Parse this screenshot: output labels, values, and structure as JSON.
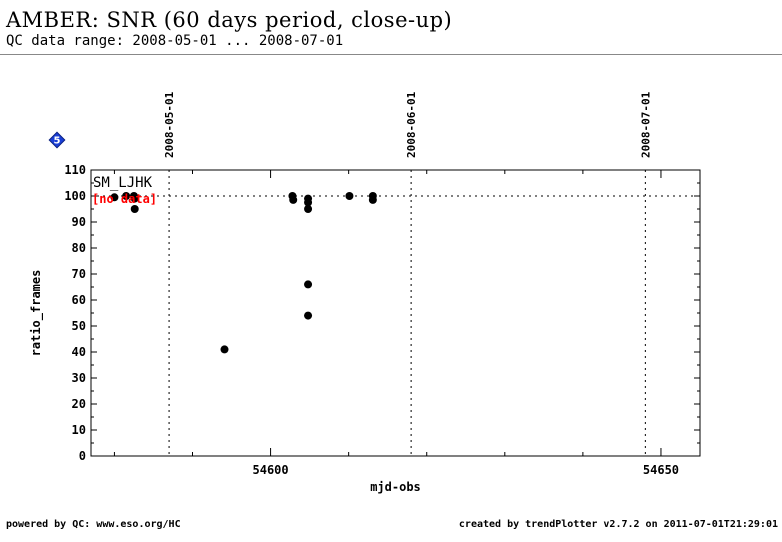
{
  "header": {
    "title": "AMBER: SNR (60 days period, close-up)",
    "subtitle": "QC data range: 2008-05-01 ... 2008-07-01"
  },
  "badge": {
    "label": "5",
    "color": "#1a3fd6"
  },
  "footer": {
    "left": "powered by QC: www.eso.org/HC",
    "right": "created by trendPlotter v2.7.2 on 2011-07-01T21:29:01"
  },
  "chart_data": {
    "type": "scatter",
    "xlabel": "mjd-obs",
    "ylabel": "ratio_frames",
    "xlim": [
      54577,
      54655
    ],
    "ylim": [
      0,
      110
    ],
    "x_ticks": [
      54600,
      54650
    ],
    "y_ticks": [
      0,
      10,
      20,
      30,
      40,
      50,
      60,
      70,
      80,
      90,
      100,
      110
    ],
    "reference_line_y": 100,
    "date_markers": [
      {
        "x": 54587,
        "label": "2008-05-01"
      },
      {
        "x": 54618,
        "label": "2008-06-01"
      },
      {
        "x": 54648,
        "label": "2008-07-01"
      }
    ],
    "series_label": "SM_LJHK",
    "no_data_label": "[no data]",
    "no_data_color": "#ff0000",
    "point_color": "#000000",
    "points": [
      {
        "x": 54580.0,
        "y": 99.5
      },
      {
        "x": 54581.5,
        "y": 100.0
      },
      {
        "x": 54582.5,
        "y": 100.0
      },
      {
        "x": 54582.6,
        "y": 99.0
      },
      {
        "x": 54582.6,
        "y": 95.0
      },
      {
        "x": 54594.1,
        "y": 41.0
      },
      {
        "x": 54602.8,
        "y": 100.0
      },
      {
        "x": 54602.9,
        "y": 98.5
      },
      {
        "x": 54604.8,
        "y": 99.0
      },
      {
        "x": 54604.8,
        "y": 97.5
      },
      {
        "x": 54604.8,
        "y": 95.0
      },
      {
        "x": 54604.8,
        "y": 66.0
      },
      {
        "x": 54604.8,
        "y": 54.0
      },
      {
        "x": 54610.1,
        "y": 100.0
      },
      {
        "x": 54613.1,
        "y": 100.0
      },
      {
        "x": 54613.1,
        "y": 98.5
      }
    ]
  }
}
